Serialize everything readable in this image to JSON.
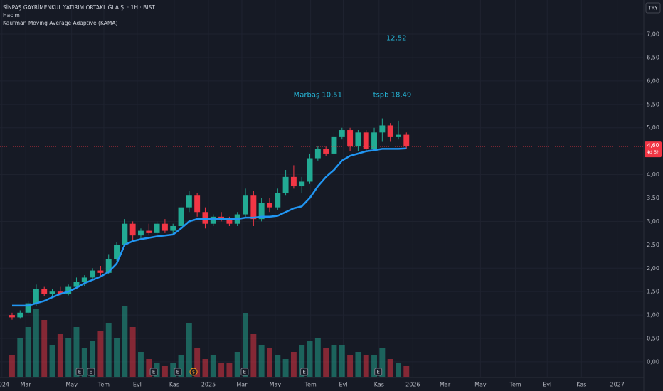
{
  "chart_data": {
    "type": "candlestick",
    "title": "SİNPAŞ GAYRİMENKUL YATIRIM ORTAKLIĞI A.Ş. · 1H · BIST",
    "indicators": [
      "Hacim",
      "Kaufman Moving Average Adaptive (KAMA)"
    ],
    "currency": "TRY",
    "x": [
      2,
      4,
      6,
      8,
      10,
      12,
      14,
      16,
      18,
      20,
      22,
      24,
      26,
      28,
      30,
      32,
      34,
      36,
      38,
      40,
      42,
      44,
      46,
      48,
      50,
      52,
      54,
      56,
      58,
      60,
      62,
      64,
      66,
      68,
      70,
      72,
      74,
      76,
      78,
      80,
      82,
      84,
      86,
      88,
      90,
      92,
      94,
      96,
      98,
      100
    ],
    "open": [
      1.0,
      0.95,
      1.05,
      1.25,
      1.55,
      1.45,
      1.5,
      1.45,
      1.6,
      1.7,
      1.8,
      1.95,
      1.9,
      2.2,
      2.5,
      2.95,
      2.7,
      2.8,
      2.75,
      2.95,
      2.8,
      2.9,
      3.3,
      3.55,
      3.2,
      2.95,
      3.1,
      3.05,
      2.95,
      3.15,
      3.55,
      3.05,
      3.4,
      3.3,
      3.6,
      3.95,
      3.75,
      3.85,
      4.35,
      4.55,
      4.45,
      4.8,
      4.95,
      4.6,
      4.9,
      4.55,
      4.9,
      5.05,
      4.8,
      4.85
    ],
    "high": [
      1.05,
      1.1,
      1.3,
      1.65,
      1.6,
      1.55,
      1.6,
      1.65,
      1.8,
      1.85,
      2.0,
      2.05,
      2.3,
      2.55,
      3.05,
      3.0,
      2.85,
      2.95,
      3.0,
      3.05,
      2.95,
      3.4,
      3.65,
      3.6,
      3.3,
      3.15,
      3.2,
      3.1,
      3.2,
      3.7,
      3.65,
      3.5,
      3.5,
      3.7,
      4.1,
      4.2,
      3.95,
      4.45,
      4.6,
      4.6,
      4.9,
      5.0,
      5.0,
      4.95,
      4.95,
      5.0,
      5.2,
      5.1,
      5.15,
      4.9
    ],
    "low": [
      0.9,
      0.92,
      1.02,
      1.2,
      1.4,
      1.38,
      1.42,
      1.42,
      1.55,
      1.62,
      1.75,
      1.82,
      1.88,
      2.15,
      2.45,
      2.6,
      2.6,
      2.7,
      2.7,
      2.75,
      2.72,
      2.85,
      3.2,
      3.1,
      2.85,
      2.9,
      3.0,
      2.9,
      2.9,
      3.1,
      2.9,
      3.0,
      3.2,
      3.25,
      3.55,
      3.7,
      3.6,
      3.8,
      4.3,
      4.4,
      4.4,
      4.75,
      4.5,
      4.5,
      4.5,
      4.5,
      4.7,
      4.7,
      4.75,
      4.55
    ],
    "close": [
      0.95,
      1.05,
      1.25,
      1.55,
      1.45,
      1.5,
      1.45,
      1.6,
      1.7,
      1.8,
      1.95,
      1.9,
      2.2,
      2.5,
      2.95,
      2.7,
      2.8,
      2.75,
      2.95,
      2.8,
      2.9,
      3.3,
      3.55,
      3.2,
      2.95,
      3.1,
      3.05,
      2.95,
      3.15,
      3.55,
      3.05,
      3.4,
      3.3,
      3.6,
      3.95,
      3.75,
      3.85,
      4.35,
      4.55,
      4.45,
      4.8,
      4.95,
      4.6,
      4.9,
      4.55,
      4.9,
      5.05,
      4.8,
      4.85,
      4.6
    ],
    "volume": [
      30,
      55,
      70,
      95,
      80,
      45,
      60,
      55,
      70,
      40,
      50,
      65,
      75,
      55,
      100,
      70,
      35,
      25,
      20,
      15,
      20,
      30,
      75,
      40,
      25,
      30,
      20,
      20,
      35,
      90,
      60,
      45,
      40,
      30,
      25,
      35,
      45,
      50,
      55,
      40,
      45,
      45,
      30,
      35,
      30,
      30,
      40,
      25,
      20,
      15
    ],
    "vlim": [
      0,
      100
    ],
    "kama": {
      "name": "KAMA",
      "color": "#2196f3",
      "values": [
        1.2,
        1.2,
        1.2,
        1.25,
        1.3,
        1.38,
        1.45,
        1.5,
        1.58,
        1.68,
        1.75,
        1.82,
        1.92,
        2.1,
        2.5,
        2.58,
        2.62,
        2.65,
        2.68,
        2.7,
        2.72,
        2.85,
        3.0,
        3.05,
        3.05,
        3.05,
        3.05,
        3.05,
        3.05,
        3.08,
        3.08,
        3.1,
        3.1,
        3.12,
        3.2,
        3.28,
        3.32,
        3.5,
        3.75,
        3.95,
        4.1,
        4.3,
        4.4,
        4.45,
        4.5,
        4.52,
        4.55,
        4.55,
        4.55,
        4.56
      ]
    },
    "up_color": "#22ab94",
    "down_color": "#f23645",
    "xlim": [
      -1,
      159
    ],
    "ylim": [
      -0.32,
      7.73
    ],
    "xticks": [
      {
        "value": -0.5,
        "label": "2024"
      },
      {
        "value": 5.4,
        "label": "Mar"
      },
      {
        "value": 16.8,
        "label": "May"
      },
      {
        "value": 24.8,
        "label": "Tem"
      },
      {
        "value": 33.1,
        "label": "Eyl"
      },
      {
        "value": 42.3,
        "label": "Kas"
      },
      {
        "value": 50.8,
        "label": "2025"
      },
      {
        "value": 59.1,
        "label": "Mar"
      },
      {
        "value": 67.4,
        "label": "May"
      },
      {
        "value": 76.2,
        "label": "Tem"
      },
      {
        "value": 84.3,
        "label": "Eyl"
      },
      {
        "value": 93.2,
        "label": "Kas"
      },
      {
        "value": 101.6,
        "label": "2026"
      },
      {
        "value": 109.6,
        "label": "Mar"
      },
      {
        "value": 118.4,
        "label": "May"
      },
      {
        "value": 127.1,
        "label": "Tem"
      },
      {
        "value": 135,
        "label": "Eyl"
      },
      {
        "value": 143.5,
        "label": "Kas"
      },
      {
        "value": 152.4,
        "label": "2027"
      }
    ],
    "yticks": [
      {
        "value": 0,
        "label": "0,00"
      },
      {
        "value": 0.5,
        "label": "0,50"
      },
      {
        "value": 1,
        "label": "1,00"
      },
      {
        "value": 1.5,
        "label": "1,50"
      },
      {
        "value": 2,
        "label": "2,00"
      },
      {
        "value": 2.5,
        "label": "2,50"
      },
      {
        "value": 3,
        "label": "3,00"
      },
      {
        "value": 3.5,
        "label": "3,50"
      },
      {
        "value": 4,
        "label": "4,00"
      },
      {
        "value": 5,
        "label": "5,00"
      },
      {
        "value": 5.5,
        "label": "5,50"
      },
      {
        "value": 6,
        "label": "6,00"
      },
      {
        "value": 6.5,
        "label": "6,50"
      },
      {
        "value": 7,
        "label": "7,00"
      }
    ],
    "grid": true,
    "last_price": {
      "value": 4.6,
      "label": "4,60",
      "countdown": "4d 5h"
    },
    "annotations": [
      {
        "text": "12,52",
        "x": 97.5,
        "y": 6.92
      },
      {
        "text": "Marbaş 10,51",
        "x": 78,
        "y": 5.7
      },
      {
        "text": "tspb 18,49",
        "x": 96.5,
        "y": 5.7
      }
    ],
    "annotation_color": "#26b5d6",
    "events": [
      {
        "x": 18.8,
        "label": "E"
      },
      {
        "x": 21.6,
        "label": "E"
      },
      {
        "x": 37.2,
        "label": "E"
      },
      {
        "x": 43.2,
        "label": "E"
      },
      {
        "x": 47.1,
        "label": "$"
      },
      {
        "x": 59.8,
        "label": "E"
      },
      {
        "x": 74.6,
        "label": "E"
      },
      {
        "x": 93,
        "label": "E"
      }
    ]
  }
}
